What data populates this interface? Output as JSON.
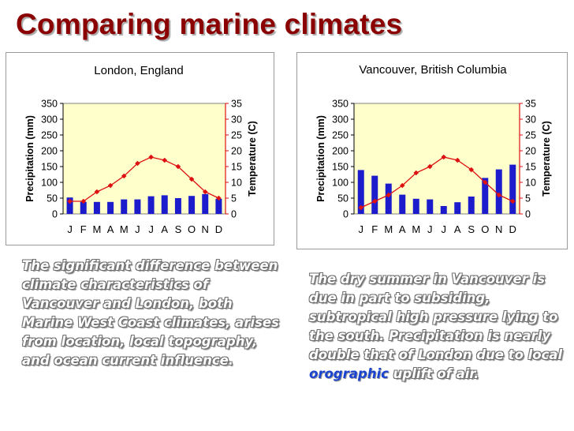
{
  "title": "Comparing marine climates",
  "chart_data": [
    {
      "type": "bar+line",
      "title": "London, England",
      "categories": [
        "J",
        "F",
        "M",
        "A",
        "M",
        "J",
        "J",
        "A",
        "S",
        "O",
        "N",
        "D"
      ],
      "series": [
        {
          "name": "Precipitation (mm)",
          "kind": "bar",
          "axis": "left",
          "color": "#1c1ccc",
          "values": [
            52,
            38,
            38,
            38,
            46,
            46,
            56,
            59,
            50,
            57,
            63,
            48
          ]
        },
        {
          "name": "Temperature (C)",
          "kind": "line",
          "axis": "right",
          "color": "#dd1111",
          "values": [
            4,
            4,
            7,
            9,
            12,
            16,
            18,
            17,
            15,
            11,
            7,
            5
          ]
        }
      ],
      "ylabel_left": "Precipitation (mm)",
      "ylabel_right": "Temperature (C)",
      "ylim_left": [
        0,
        350
      ],
      "ylim_right": [
        0,
        35
      ],
      "yticks_left": [
        0,
        50,
        100,
        150,
        200,
        250,
        300,
        350
      ],
      "yticks_right": [
        0,
        5,
        10,
        15,
        20,
        25,
        30,
        35
      ],
      "plot_background": "#ffffcc"
    },
    {
      "type": "bar+line",
      "title": "Vancouver, British Columbia",
      "categories": [
        "J",
        "F",
        "M",
        "A",
        "M",
        "J",
        "J",
        "A",
        "S",
        "O",
        "N",
        "D"
      ],
      "series": [
        {
          "name": "Precipitation (mm)",
          "kind": "bar",
          "axis": "left",
          "color": "#1c1ccc",
          "values": [
            139,
            121,
            96,
            61,
            48,
            46,
            25,
            37,
            55,
            114,
            141,
            156
          ]
        },
        {
          "name": "Temperature (C)",
          "kind": "line",
          "axis": "right",
          "color": "#dd1111",
          "values": [
            2,
            4,
            6,
            9,
            13,
            15,
            18,
            17,
            14,
            10,
            6,
            4
          ]
        }
      ],
      "ylabel_left": "Precipitation (mm)",
      "ylabel_right": "Temperature (C)",
      "ylim_left": [
        0,
        350
      ],
      "ylim_right": [
        0,
        35
      ],
      "yticks_left": [
        0,
        50,
        100,
        150,
        200,
        250,
        300,
        350
      ],
      "yticks_right": [
        0,
        5,
        10,
        15,
        20,
        25,
        30,
        35
      ],
      "plot_background": "#ffffcc"
    }
  ],
  "captions": {
    "left": "The significant difference between climate characteristics of Vancouver and London, both Marine West Coast climates, arises from location, local topography, and ocean current influence.",
    "right_before": "The dry summer in Vancouver is due in part to subsiding, subtropical high pressure lying to the south. Precipitation is nearly double that of London due to local ",
    "right_emphasis": "orographic",
    "right_after": " uplift of air."
  }
}
